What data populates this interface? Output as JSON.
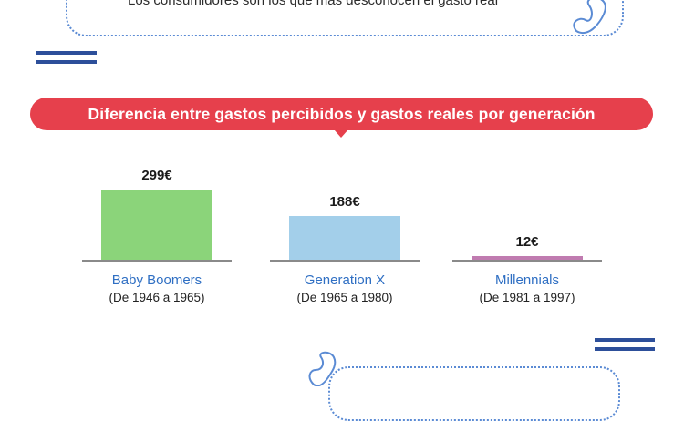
{
  "colors": {
    "banner": "#e6404c",
    "accent_blue": "#2d4f9a",
    "category_text": "#2f6fc3"
  },
  "top_cut_text": "Los consumidores son los que más desconocen el gasto real",
  "chart_data": {
    "type": "bar",
    "title": "Diferencia entre gastos percibidos y gastos reales por generación",
    "categories": [
      "Baby Boomers",
      "Generation X",
      "Millennials"
    ],
    "category_subtitles": [
      "(De 1946 a 1965)",
      "(De 1965 a 1980)",
      "(De 1981 a 1997)"
    ],
    "values": [
      299,
      188,
      12
    ],
    "value_labels": [
      "299€",
      "188€",
      "12€"
    ],
    "bar_colors": [
      "#8bd47a",
      "#a3cfea",
      "#c07bb0"
    ],
    "ylim": [
      0,
      299
    ],
    "xlabel": "",
    "ylabel": "",
    "grid": false
  }
}
